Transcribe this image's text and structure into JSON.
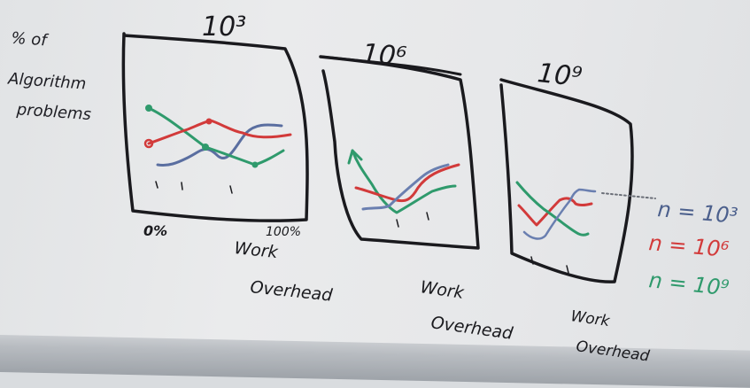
{
  "y_axis_label": [
    "% of",
    "Algorithm",
    "problems"
  ],
  "panels": [
    {
      "title": "10³",
      "x_start": "0%",
      "x_end": "100%",
      "x_label": [
        "Work",
        "Overhead"
      ]
    },
    {
      "title": "10⁶",
      "x_label": [
        "Work",
        "Overhead"
      ]
    },
    {
      "title": "10⁹",
      "x_label": [
        "Work",
        "Overhead"
      ]
    }
  ],
  "legend": [
    {
      "label": "n = 10³",
      "color": "#4b5f8c"
    },
    {
      "label": "n = 10⁶",
      "color": "#d23a3a"
    },
    {
      "label": "n = 10⁹",
      "color": "#2f9a6c"
    }
  ]
}
